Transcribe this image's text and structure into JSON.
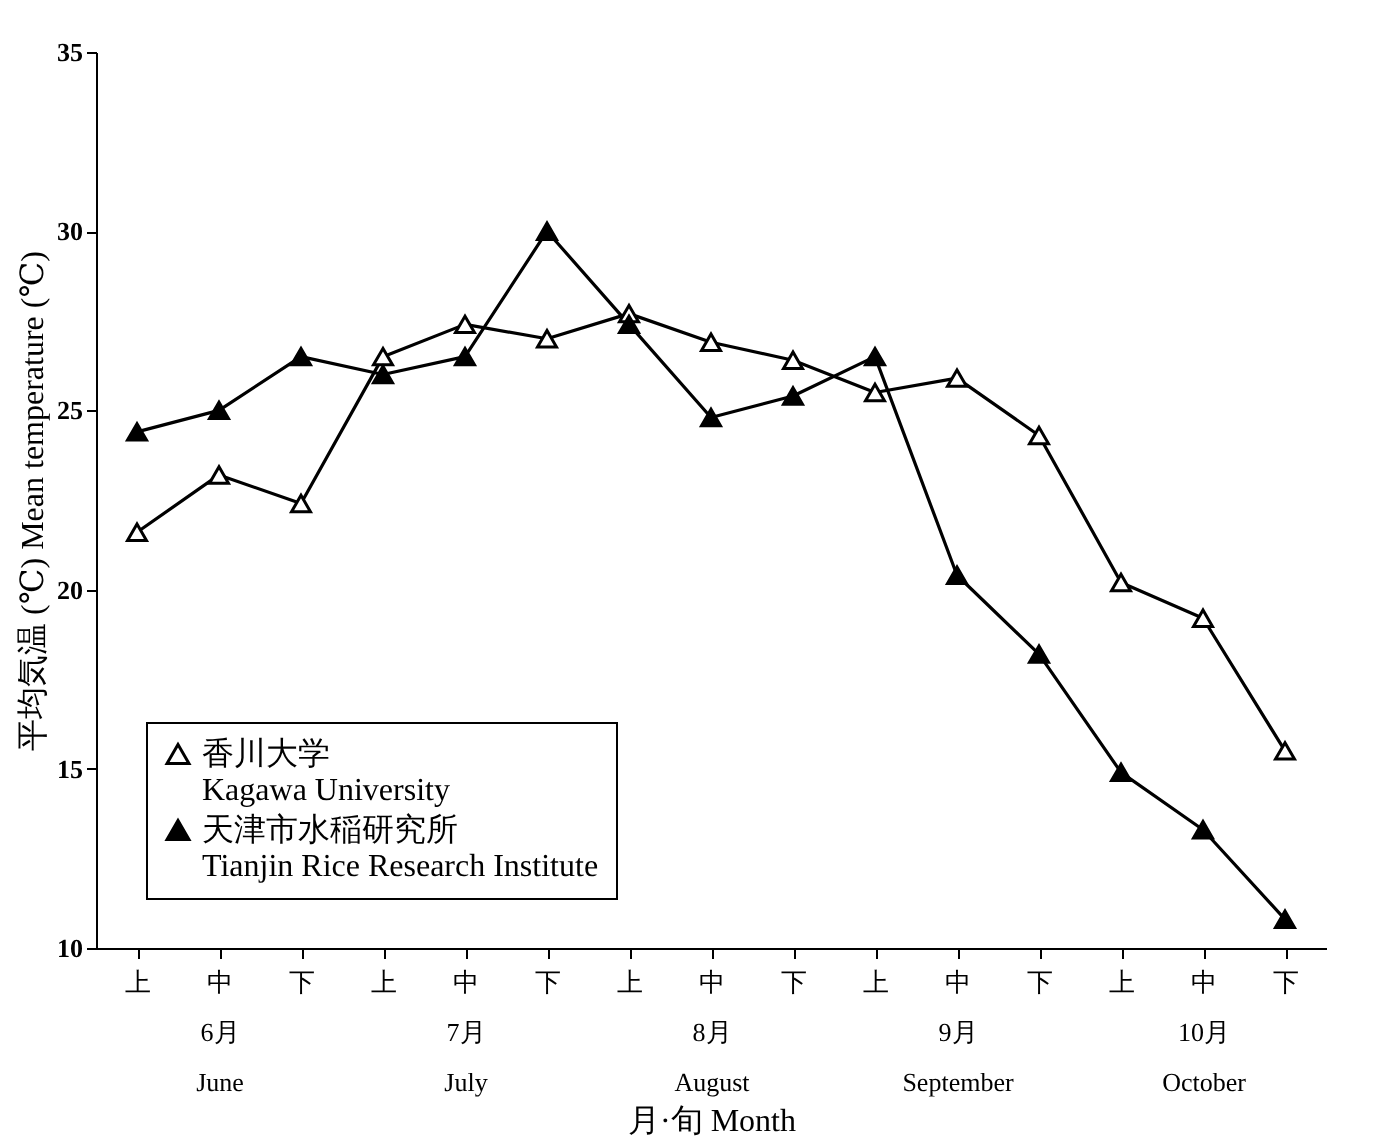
{
  "chart_data": {
    "type": "line",
    "xlabel": "月·旬 Month",
    "ylabel": "平均気温 (℃)  Mean temperature (℃)",
    "categories": [
      "上",
      "中\n6月\nJune",
      "下",
      "上",
      "中\n7月\nJuly",
      "下",
      "上",
      "中\n8月\nAugust",
      "下",
      "上",
      "中\n9月\nSeptember",
      "下",
      "上",
      "中\n10月\nOctober",
      "下"
    ],
    "series": [
      {
        "name": "香川大学\nKagawa University",
        "color": "#000000",
        "values": [
          21.6,
          23.2,
          22.4,
          26.5,
          27.4,
          27.0,
          27.7,
          26.9,
          26.4,
          25.5,
          25.9,
          24.3,
          20.2,
          19.2,
          15.5
        ]
      },
      {
        "name": "天津市水稲研究所\nTianjin Rice Research Institute",
        "color": "#000000",
        "values": [
          24.4,
          25.0,
          26.5,
          26.0,
          26.5,
          30.0,
          27.4,
          24.8,
          25.4,
          26.5,
          20.4,
          18.2,
          14.9,
          13.3,
          10.8
        ]
      }
    ],
    "ylim": [
      10,
      35
    ],
    "yticks": [
      10,
      15,
      20,
      25,
      30,
      35
    ],
    "grid": false,
    "legend": "bottom left",
    "marker": "triangle",
    "line_style": "solid"
  }
}
